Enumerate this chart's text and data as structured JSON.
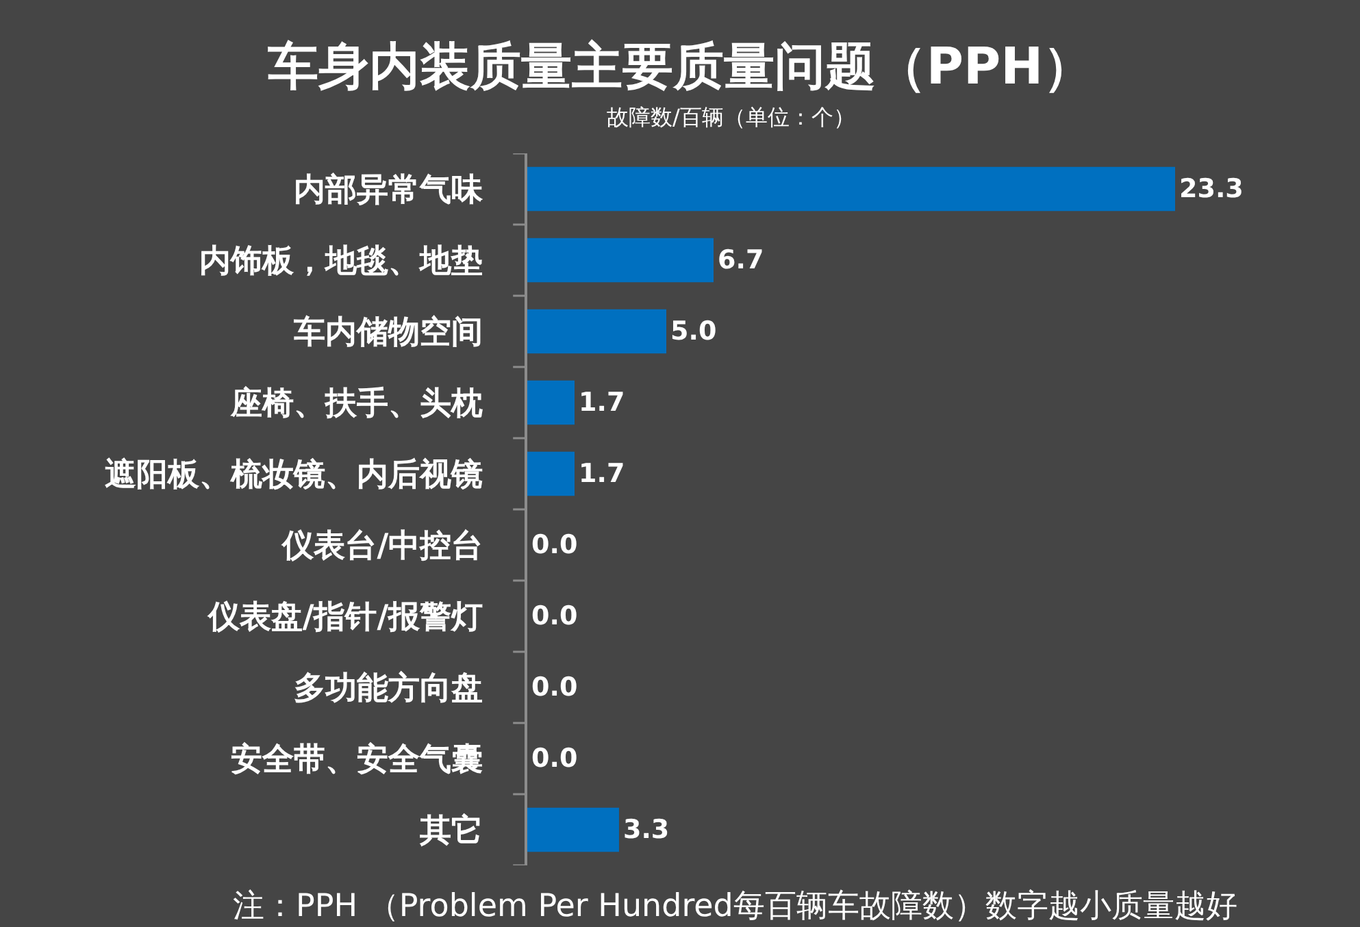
{
  "chart_data": {
    "type": "bar",
    "orientation": "horizontal",
    "title": "车身内装质量主要质量问题（PPH）",
    "subtitle": "故障数/百辆（单位：个）",
    "categories": [
      "内部异常气味",
      "内饰板，地毯、地垫",
      "车内储物空间",
      "座椅、扶手、头枕",
      "遮阳板、梳妆镜、内后视镜",
      "仪表台/中控台",
      "仪表盘/指针/报警灯",
      "多功能方向盘",
      "安全带、安全气囊",
      "其它"
    ],
    "values": [
      23.3,
      6.7,
      5.0,
      1.7,
      1.7,
      0.0,
      0.0,
      0.0,
      0.0,
      3.3
    ],
    "value_labels": [
      "23.3",
      "6.7",
      "5.0",
      "1.7",
      "1.7",
      "0.0",
      "0.0",
      "0.0",
      "0.0",
      "3.3"
    ],
    "color": "#0070c0",
    "tick_labels": "y",
    "annotations": [
      "注：PPH （Problem Per Hundred每百辆车故障数）数字越小质量越好"
    ]
  }
}
